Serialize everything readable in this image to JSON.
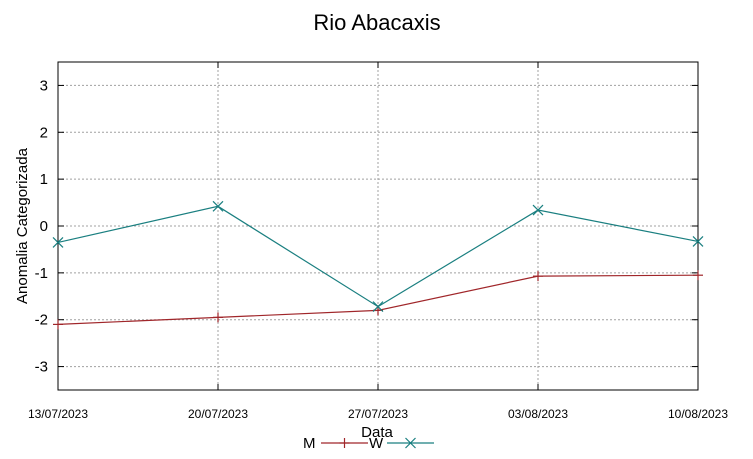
{
  "chart_data": {
    "type": "line",
    "title": "Rio Abacaxis",
    "xlabel": "Data",
    "ylabel": "Anomalia Categorizada",
    "categories": [
      "13/07/2023",
      "20/07/2023",
      "27/07/2023",
      "03/08/2023",
      "10/08/2023"
    ],
    "yticks": [
      3,
      2,
      1,
      0,
      -1,
      -2,
      -3
    ],
    "ylim": [
      -3.5,
      3.5
    ],
    "grid": true,
    "legend_position": "bottom",
    "series": [
      {
        "name": "M",
        "color": "#a0262a",
        "marker": "plus",
        "values": [
          -2.1,
          -1.95,
          -1.8,
          -1.07,
          -1.05
        ]
      },
      {
        "name": "W",
        "color": "#1a7f80",
        "marker": "cross",
        "values": [
          -0.35,
          0.42,
          -1.72,
          0.34,
          -0.33
        ]
      }
    ]
  }
}
